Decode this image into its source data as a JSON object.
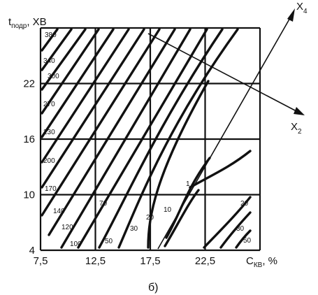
{
  "chart_data": {
    "type": "contour",
    "xlabel": {
      "main": "C",
      "sub": "КВ",
      "unit": ", %"
    },
    "ylabel": {
      "main": "t",
      "sub": "подр",
      "unit": ", ХВ"
    },
    "x_ticks": [
      "7,5",
      "12,5",
      "17,5",
      "22,5"
    ],
    "y_ticks": [
      "4",
      "10",
      "16",
      "22"
    ],
    "xlim": [
      7.5,
      27.5
    ],
    "ylim": [
      4,
      28
    ],
    "grid": true,
    "caption": "б)",
    "vectors": [
      {
        "name": "X",
        "sub": "4"
      },
      {
        "name": "X",
        "sub": "2"
      }
    ],
    "contour_labels": [
      "380",
      "340",
      "300",
      "270",
      "230",
      "200",
      "170",
      "140",
      "120",
      "100",
      "70",
      "50",
      "30",
      "20",
      "10",
      "1",
      "20",
      "30",
      "50"
    ]
  }
}
